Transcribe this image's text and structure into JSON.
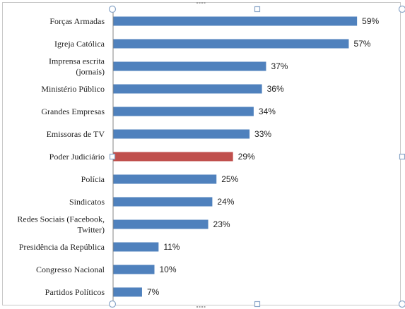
{
  "chart_data": {
    "type": "bar",
    "orientation": "horizontal",
    "categories": [
      "Forças Armadas",
      "Igreja Católica",
      "Imprensa escrita (jornais)",
      "Ministério Público",
      "Grandes Empresas",
      "Emissoras de TV",
      "Poder Judiciário",
      "Polícia",
      "Sindicatos",
      "Redes Sociais (Facebook, Twitter)",
      "Presidência da República",
      "Congresso Nacional",
      "Partidos Políticos"
    ],
    "category_lines": [
      [
        "Forças Armadas"
      ],
      [
        "Igreja Católica"
      ],
      [
        "Imprensa escrita",
        "(jornais)"
      ],
      [
        "Ministério Público"
      ],
      [
        "Grandes Empresas"
      ],
      [
        "Emissoras de TV"
      ],
      [
        "Poder Judiciário"
      ],
      [
        "Polícia"
      ],
      [
        "Sindicatos"
      ],
      [
        "Redes Sociais (Facebook,",
        "Twitter)"
      ],
      [
        "Presidência da República"
      ],
      [
        "Congresso Nacional"
      ],
      [
        "Partidos Políticos"
      ]
    ],
    "values": [
      59,
      57,
      37,
      36,
      34,
      33,
      29,
      25,
      24,
      23,
      11,
      10,
      7
    ],
    "value_labels": [
      "59%",
      "57%",
      "37%",
      "36%",
      "34%",
      "33%",
      "29%",
      "25%",
      "24%",
      "23%",
      "11%",
      "10%",
      "7%"
    ],
    "highlight_index": 6,
    "xlim": [
      0,
      100
    ],
    "grid": false,
    "legend": "none",
    "title": "",
    "xlabel": "",
    "ylabel": ""
  },
  "colors": {
    "bar": "#4f81bd",
    "highlight": "#c0504d",
    "axis": "#868686",
    "text": "#1f1f1f",
    "handle": "#8aa6c8"
  }
}
